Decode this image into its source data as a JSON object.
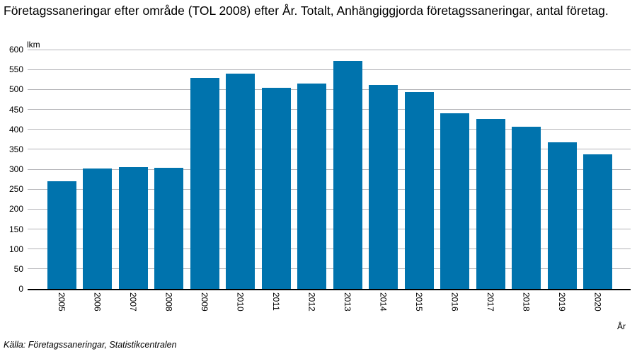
{
  "title": "Företagssaneringar efter område (TOL 2008) efter År. Totalt, Anhängiggjorda företagssaneringar, antal företag.",
  "source": "Källa: Företagssaneringar, Statistikcentralen",
  "colors": {
    "bar": "#0073AD",
    "gridline": "#b4b4b8",
    "axis": "#000000",
    "text": "#000000",
    "background": "#ffffff"
  },
  "chart_data": {
    "type": "bar",
    "title": "Företagssaneringar efter område (TOL 2008) efter År. Totalt, Anhängiggjorda företagssaneringar, antal företag.",
    "unit_label": "lkm",
    "xlabel": "År",
    "ylabel": "",
    "categories": [
      "2005",
      "2006",
      "2007",
      "2008",
      "2009",
      "2010",
      "2011",
      "2012",
      "2013",
      "2014",
      "2015",
      "2016",
      "2017",
      "2018",
      "2019",
      "2020"
    ],
    "values": [
      269,
      302,
      306,
      304,
      529,
      539,
      505,
      515,
      571,
      512,
      494,
      440,
      426,
      407,
      368,
      338
    ],
    "ylim": [
      0,
      600
    ],
    "yticks": [
      0,
      50,
      100,
      150,
      200,
      250,
      300,
      350,
      400,
      450,
      500,
      550,
      600
    ],
    "grid": true,
    "legend_position": "none",
    "bar_color": "#0073AD"
  }
}
